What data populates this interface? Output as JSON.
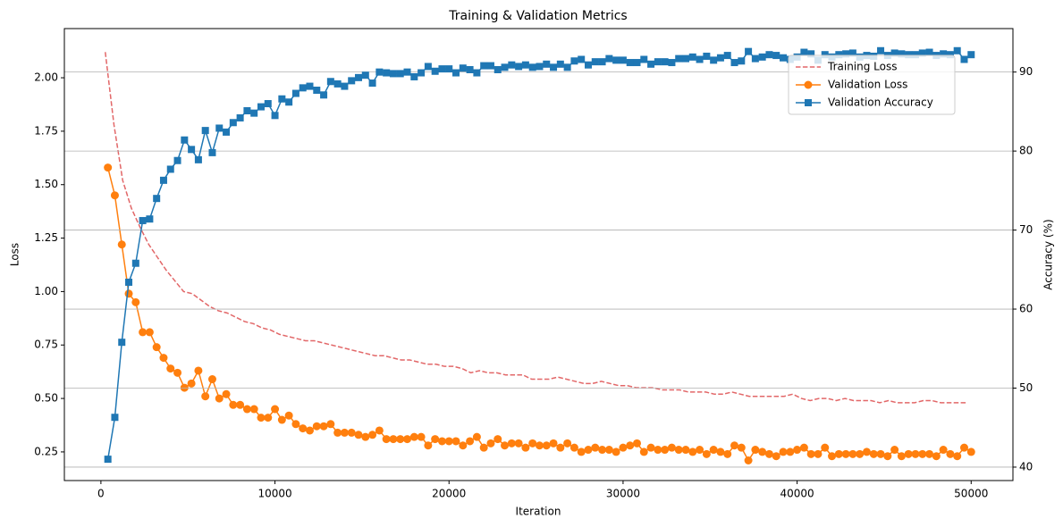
{
  "chart_data": {
    "type": "line",
    "title": "Training & Validation Metrics",
    "x_label": "Iteration",
    "y_label": "Loss",
    "y2_label": "Accuracy (%)",
    "y_color": "#d62728",
    "y2_color": "#1f77b4",
    "xlim": [
      -2100,
      52400
    ],
    "xticks": [
      0,
      10000,
      20000,
      30000,
      40000,
      50000
    ],
    "ylim": [
      0.116,
      2.23
    ],
    "yticks": [
      0.25,
      {
        "value": 0.5,
        "label": "0.50"
      },
      0.75,
      {
        "value": 1.0,
        "label": "1.00"
      },
      1.25,
      {
        "value": 1.5,
        "label": "1.50"
      },
      1.75,
      {
        "value": 2.0,
        "label": "2.00"
      }
    ],
    "y2lim": [
      38.3,
      95.5
    ],
    "y2ticks": [
      40,
      50,
      60,
      70,
      80,
      90
    ],
    "grid": "y2",
    "legend_loc": "upper right",
    "series": [
      {
        "name": "Training Loss",
        "color": "#d62728",
        "linestyle": "dashed",
        "marker": null,
        "x": [
          250,
          750,
          1250,
          1750,
          2250,
          2750,
          3250,
          3750,
          4250,
          4750,
          5250,
          5750,
          6250,
          6750,
          7250,
          7750,
          8250,
          8750,
          9250,
          9750,
          10250,
          10750,
          11250,
          11750,
          12250,
          12750,
          13250,
          13750,
          14250,
          14750,
          15250,
          15750,
          16250,
          16750,
          17250,
          17750,
          18250,
          18750,
          19250,
          19750,
          20250,
          20750,
          21250,
          21750,
          22250,
          22750,
          23250,
          23750,
          24250,
          24750,
          25250,
          25750,
          26250,
          26750,
          27250,
          27750,
          28250,
          28750,
          29250,
          29750,
          30250,
          30750,
          31250,
          31750,
          32250,
          32750,
          33250,
          33750,
          34250,
          34750,
          35250,
          35750,
          36250,
          36750,
          37250,
          37750,
          38250,
          38750,
          39250,
          39750,
          40250,
          40750,
          41250,
          41750,
          42250,
          42750,
          43250,
          43750,
          44250,
          44750,
          45250,
          45750,
          46250,
          46750,
          47250,
          47750,
          48250,
          48750,
          49250,
          49750
        ],
        "values": [
          2.12,
          1.78,
          1.52,
          1.39,
          1.3,
          1.22,
          1.16,
          1.1,
          1.05,
          1.0,
          0.99,
          0.96,
          0.93,
          0.91,
          0.9,
          0.88,
          0.86,
          0.85,
          0.83,
          0.82,
          0.8,
          0.79,
          0.78,
          0.77,
          0.77,
          0.76,
          0.75,
          0.74,
          0.73,
          0.72,
          0.71,
          0.7,
          0.7,
          0.69,
          0.68,
          0.68,
          0.67,
          0.66,
          0.66,
          0.65,
          0.65,
          0.64,
          0.62,
          0.63,
          0.62,
          0.62,
          0.61,
          0.61,
          0.61,
          0.59,
          0.59,
          0.59,
          0.6,
          0.59,
          0.58,
          0.57,
          0.57,
          0.58,
          0.57,
          0.56,
          0.56,
          0.55,
          0.55,
          0.55,
          0.54,
          0.54,
          0.54,
          0.53,
          0.53,
          0.53,
          0.52,
          0.52,
          0.53,
          0.52,
          0.51,
          0.51,
          0.51,
          0.51,
          0.51,
          0.52,
          0.5,
          0.49,
          0.5,
          0.5,
          0.49,
          0.5,
          0.49,
          0.49,
          0.49,
          0.48,
          0.49,
          0.48,
          0.48,
          0.48,
          0.49,
          0.49,
          0.48,
          0.48,
          0.48,
          0.48
        ]
      },
      {
        "name": "Validation Loss",
        "color": "#ff7f0e",
        "linestyle": "solid",
        "marker": "o",
        "x": [
          400,
          800,
          1200,
          1600,
          2000,
          2400,
          2800,
          3200,
          3600,
          4000,
          4400,
          4800,
          5200,
          5600,
          6000,
          6400,
          6800,
          7200,
          7600,
          8000,
          8400,
          8800,
          9200,
          9600,
          10000,
          10400,
          10800,
          11200,
          11600,
          12000,
          12400,
          12800,
          13200,
          13600,
          14000,
          14400,
          14800,
          15200,
          15600,
          16000,
          16400,
          16800,
          17200,
          17600,
          18000,
          18400,
          18800,
          19200,
          19600,
          20000,
          20400,
          20800,
          21200,
          21600,
          22000,
          22400,
          22800,
          23200,
          23600,
          24000,
          24400,
          24800,
          25200,
          25600,
          26000,
          26400,
          26800,
          27200,
          27600,
          28000,
          28400,
          28800,
          29200,
          29600,
          30000,
          30400,
          30800,
          31200,
          31600,
          32000,
          32400,
          32800,
          33200,
          33600,
          34000,
          34400,
          34800,
          35200,
          35600,
          36000,
          36400,
          36800,
          37200,
          37600,
          38000,
          38400,
          38800,
          39200,
          39600,
          40000,
          40400,
          40800,
          41200,
          41600,
          42000,
          42400,
          42800,
          43200,
          43600,
          44000,
          44400,
          44800,
          45200,
          45600,
          46000,
          46400,
          46800,
          47200,
          47600,
          48000,
          48400,
          48800,
          49200,
          49600,
          50000
        ],
        "values": [
          1.58,
          1.45,
          1.22,
          0.99,
          0.95,
          0.81,
          0.81,
          0.74,
          0.69,
          0.64,
          0.62,
          0.55,
          0.57,
          0.63,
          0.51,
          0.59,
          0.5,
          0.52,
          0.47,
          0.47,
          0.45,
          0.45,
          0.41,
          0.41,
          0.45,
          0.4,
          0.42,
          0.38,
          0.36,
          0.35,
          0.37,
          0.37,
          0.38,
          0.34,
          0.34,
          0.34,
          0.33,
          0.32,
          0.33,
          0.35,
          0.31,
          0.31,
          0.31,
          0.31,
          0.32,
          0.32,
          0.28,
          0.31,
          0.3,
          0.3,
          0.3,
          0.28,
          0.3,
          0.32,
          0.27,
          0.29,
          0.31,
          0.28,
          0.29,
          0.29,
          0.27,
          0.29,
          0.28,
          0.28,
          0.29,
          0.27,
          0.29,
          0.27,
          0.25,
          0.26,
          0.27,
          0.26,
          0.26,
          0.25,
          0.27,
          0.28,
          0.29,
          0.25,
          0.27,
          0.26,
          0.26,
          0.27,
          0.26,
          0.26,
          0.25,
          0.26,
          0.24,
          0.26,
          0.25,
          0.24,
          0.28,
          0.27,
          0.21,
          0.26,
          0.25,
          0.24,
          0.23,
          0.25,
          0.25,
          0.26,
          0.27,
          0.24,
          0.24,
          0.27,
          0.23,
          0.24,
          0.24,
          0.24,
          0.24,
          0.25,
          0.24,
          0.24,
          0.23,
          0.26,
          0.23,
          0.24,
          0.24,
          0.24,
          0.24,
          0.23,
          0.26,
          0.24,
          0.23,
          0.27,
          0.25
        ]
      },
      {
        "name": "Validation Accuracy",
        "color": "#1f77b4",
        "linestyle": "solid",
        "marker": "s",
        "axis": "y2",
        "x": [
          400,
          800,
          1200,
          1600,
          2000,
          2400,
          2800,
          3200,
          3600,
          4000,
          4400,
          4800,
          5200,
          5600,
          6000,
          6400,
          6800,
          7200,
          7600,
          8000,
          8400,
          8800,
          9200,
          9600,
          10000,
          10400,
          10800,
          11200,
          11600,
          12000,
          12400,
          12800,
          13200,
          13600,
          14000,
          14400,
          14800,
          15200,
          15600,
          16000,
          16400,
          16800,
          17200,
          17600,
          18000,
          18400,
          18800,
          19200,
          19600,
          20000,
          20400,
          20800,
          21200,
          21600,
          22000,
          22400,
          22800,
          23200,
          23600,
          24000,
          24400,
          24800,
          25200,
          25600,
          26000,
          26400,
          26800,
          27200,
          27600,
          28000,
          28400,
          28800,
          29200,
          29600,
          30000,
          30400,
          30800,
          31200,
          31600,
          32000,
          32400,
          32800,
          33200,
          33600,
          34000,
          34400,
          34800,
          35200,
          35600,
          36000,
          36400,
          36800,
          37200,
          37600,
          38000,
          38400,
          38800,
          39200,
          39600,
          40000,
          40400,
          40800,
          41200,
          41600,
          42000,
          42400,
          42800,
          43200,
          43600,
          44000,
          44400,
          44800,
          45200,
          45600,
          46000,
          46400,
          46800,
          47200,
          47600,
          48000,
          48400,
          48800,
          49200,
          49600,
          50000
        ],
        "values": [
          41.0,
          46.3,
          55.8,
          63.4,
          65.8,
          71.2,
          71.4,
          74.0,
          76.3,
          77.7,
          78.8,
          81.4,
          80.2,
          78.9,
          82.6,
          79.8,
          82.9,
          82.4,
          83.6,
          84.2,
          85.1,
          84.8,
          85.6,
          86.0,
          84.5,
          86.6,
          86.2,
          87.3,
          88.0,
          88.2,
          87.7,
          87.1,
          88.8,
          88.5,
          88.2,
          88.9,
          89.3,
          89.6,
          88.6,
          90.0,
          89.9,
          89.8,
          89.8,
          90.0,
          89.4,
          89.9,
          90.7,
          90.1,
          90.4,
          90.4,
          89.9,
          90.5,
          90.3,
          89.9,
          90.8,
          90.8,
          90.3,
          90.6,
          90.9,
          90.7,
          90.9,
          90.6,
          90.7,
          91.0,
          90.6,
          91.0,
          90.6,
          91.4,
          91.6,
          90.9,
          91.3,
          91.3,
          91.7,
          91.5,
          91.5,
          91.2,
          91.2,
          91.6,
          91.0,
          91.3,
          91.3,
          91.2,
          91.7,
          91.7,
          91.9,
          91.6,
          92.0,
          91.5,
          91.8,
          92.1,
          91.2,
          91.4,
          92.6,
          91.7,
          91.9,
          92.2,
          92.1,
          91.8,
          91.6,
          91.9,
          92.5,
          92.3,
          91.5,
          92.2,
          91.9,
          92.2,
          92.3,
          92.4,
          91.9,
          92.1,
          92.0,
          92.7,
          92.1,
          92.4,
          92.3,
          92.2,
          92.2,
          92.4,
          92.5,
          92.1,
          92.3,
          92.2,
          92.7,
          91.6,
          92.2
        ]
      }
    ]
  }
}
